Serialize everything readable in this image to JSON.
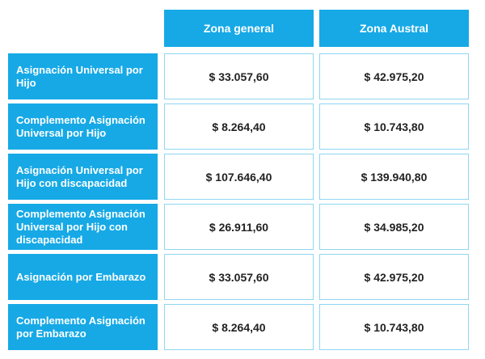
{
  "table": {
    "columns": [
      "Zona general",
      "Zona Austral"
    ],
    "rows": [
      {
        "label": "Asignación Universal por Hijo",
        "values": [
          "$ 33.057,60",
          "$ 42.975,20"
        ]
      },
      {
        "label": "Complemento Asignación Universal por Hijo",
        "values": [
          "$ 8.264,40",
          "$ 10.743,80"
        ]
      },
      {
        "label": "Asignación Universal por Hijo con discapacidad",
        "values": [
          "$ 107.646,40",
          "$ 139.940,80"
        ]
      },
      {
        "label": "Complemento Asignación Universal por Hijo con discapacidad",
        "values": [
          "$ 26.911,60",
          "$ 34.985,20"
        ]
      },
      {
        "label": "Asignación por Embarazo",
        "values": [
          "$ 33.057,60",
          "$ 42.975,20"
        ]
      },
      {
        "label": "Complemento Asignación por Embarazo",
        "values": [
          "$ 8.264,40",
          "$ 10.743,80"
        ]
      }
    ]
  },
  "colors": {
    "accent": "#16a9e6",
    "cell_border": "#8fd6f3",
    "value_text": "#222222"
  }
}
